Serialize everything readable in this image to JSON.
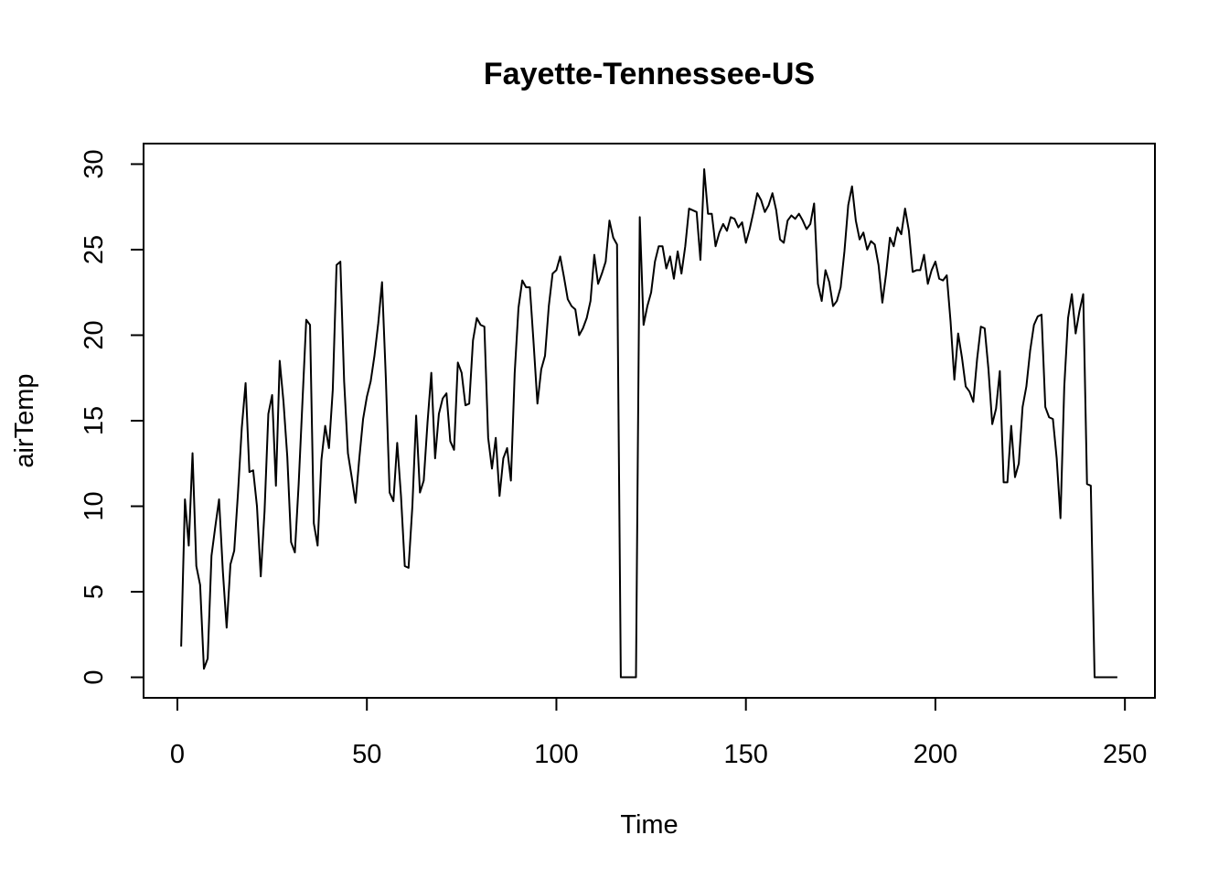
{
  "chart_data": {
    "type": "line",
    "title": "Fayette-Tennessee-US",
    "xlabel": "Time",
    "ylabel": "airTemp",
    "xlim": [
      -8.92,
      257.92
    ],
    "ylim": [
      -1.2,
      31.2
    ],
    "xticks": [
      0,
      50,
      100,
      150,
      200,
      250
    ],
    "yticks": [
      0,
      5,
      10,
      15,
      20,
      25,
      30
    ],
    "xtick_labels": [
      "0",
      "50",
      "100",
      "150",
      "200",
      "250"
    ],
    "ytick_labels": [
      "0",
      "5",
      "10",
      "15",
      "20",
      "25",
      "30"
    ],
    "grid": false,
    "legend": "none",
    "line_color": "#000000",
    "series": [
      {
        "x_start": 1,
        "x_step": 1,
        "values": [
          1.8,
          10.4,
          7.7,
          13.1,
          6.5,
          5.4,
          0.5,
          1.1,
          7.1,
          8.8,
          10.4,
          6.2,
          2.9,
          6.6,
          7.4,
          10.8,
          14.6,
          17.2,
          12.0,
          12.1,
          10.0,
          5.9,
          9.7,
          15.4,
          16.5,
          11.2,
          18.5,
          16.1,
          12.9,
          7.9,
          7.3,
          11.3,
          16.1,
          20.9,
          20.6,
          9.0,
          7.7,
          12.7,
          14.7,
          13.4,
          16.8,
          24.1,
          24.3,
          17.3,
          13.1,
          11.7,
          10.2,
          12.8,
          15.1,
          16.4,
          17.3,
          18.8,
          20.7,
          23.1,
          17.5,
          10.8,
          10.3,
          13.7,
          10.6,
          6.5,
          6.4,
          10.0,
          15.3,
          10.8,
          11.5,
          14.9,
          17.8,
          12.8,
          15.4,
          16.3,
          16.6,
          13.8,
          13.3,
          18.4,
          17.8,
          15.9,
          16.0,
          19.7,
          21.0,
          20.6,
          20.5,
          14.0,
          12.2,
          14.0,
          10.6,
          12.8,
          13.4,
          11.5,
          17.8,
          21.6,
          23.2,
          22.8,
          22.8,
          19.5,
          16.0,
          18.0,
          18.8,
          21.7,
          23.6,
          23.8,
          24.6,
          23.4,
          22.1,
          21.7,
          21.5,
          20.0,
          20.4,
          21.0,
          22.0,
          24.7,
          23.0,
          23.6,
          24.3,
          26.7,
          25.7,
          25.3,
          0.0,
          0.0,
          0.0,
          0.0,
          0.0,
          26.9,
          20.6,
          21.7,
          22.5,
          24.3,
          25.2,
          25.2,
          23.9,
          24.6,
          23.3,
          24.9,
          23.6,
          25.2,
          27.4,
          27.3,
          27.2,
          24.4,
          29.7,
          27.1,
          27.1,
          25.2,
          26.0,
          26.5,
          26.1,
          26.9,
          26.8,
          26.3,
          26.6,
          25.4,
          26.2,
          27.2,
          28.3,
          27.9,
          27.2,
          27.6,
          28.3,
          27.3,
          25.6,
          25.4,
          26.7,
          27.0,
          26.8,
          27.1,
          26.7,
          26.2,
          26.5,
          27.7,
          23.0,
          22.0,
          23.8,
          23.1,
          21.7,
          22.0,
          22.8,
          24.9,
          27.6,
          28.7,
          26.7,
          25.6,
          26.0,
          25.0,
          25.5,
          25.3,
          24.1,
          21.9,
          23.6,
          25.7,
          25.2,
          26.3,
          25.9,
          27.4,
          26.1,
          23.7,
          23.8,
          23.8,
          24.7,
          23.0,
          23.8,
          24.3,
          23.3,
          23.2,
          23.5,
          20.8,
          17.4,
          20.1,
          18.7,
          17.0,
          16.7,
          16.1,
          18.6,
          20.5,
          20.4,
          18.0,
          14.8,
          15.7,
          17.9,
          11.4,
          11.4,
          14.7,
          11.7,
          12.5,
          15.8,
          17.0,
          19.1,
          20.6,
          21.1,
          21.2,
          15.8,
          15.2,
          15.1,
          12.8,
          9.3,
          17.0,
          21.0,
          22.4,
          20.1,
          21.4,
          22.4,
          11.3,
          11.2,
          0.0,
          0.0,
          0.0,
          0.0,
          0.0,
          0.0,
          0.0
        ]
      }
    ]
  }
}
